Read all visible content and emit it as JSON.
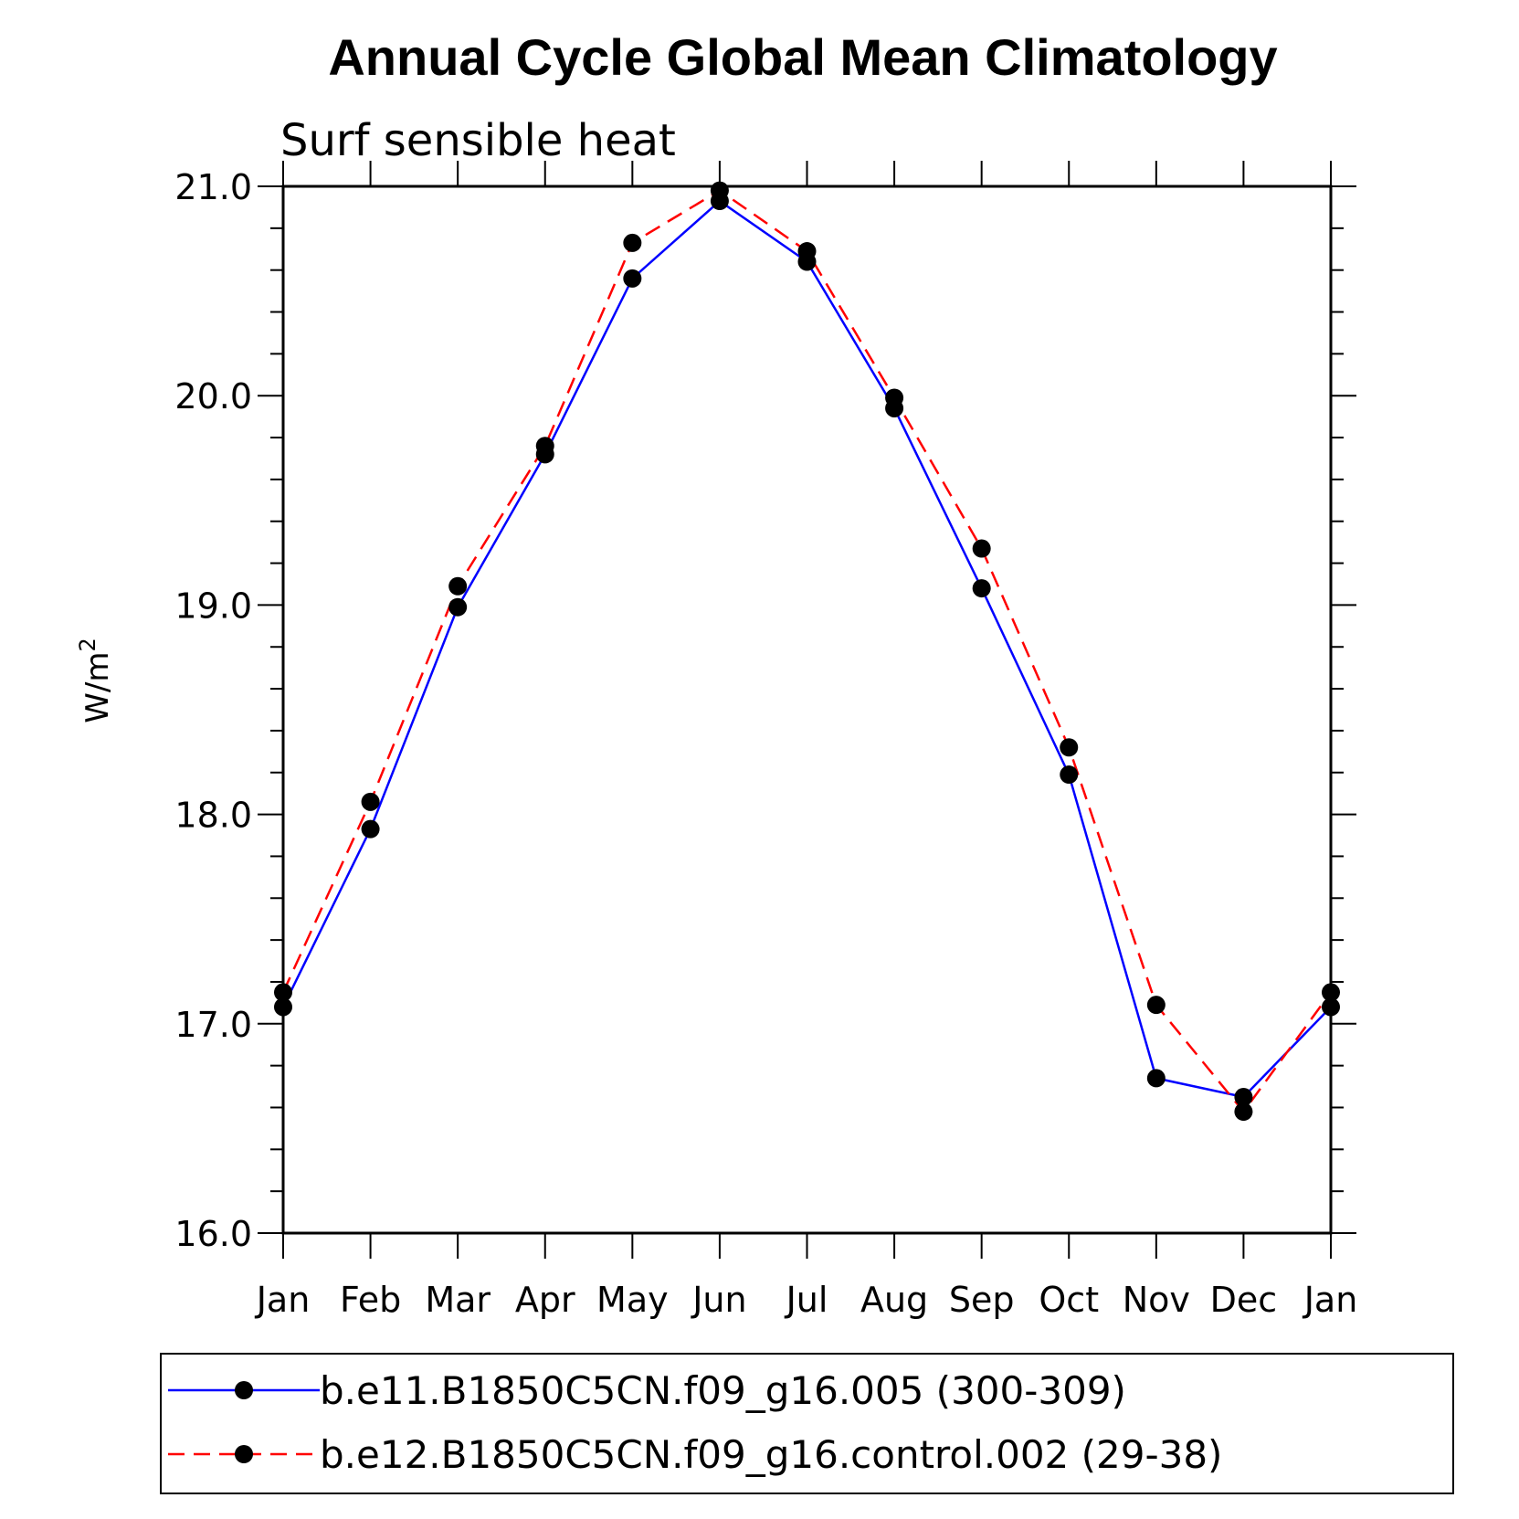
{
  "chart_data": {
    "type": "line",
    "title": "Annual Cycle Global Mean Climatology",
    "subtitle": "Surf sensible heat",
    "xlabel": "",
    "ylabel": "W/m",
    "ylabel_superscript": "2",
    "categories": [
      "Jan",
      "Feb",
      "Mar",
      "Apr",
      "May",
      "Jun",
      "Jul",
      "Aug",
      "Sep",
      "Oct",
      "Nov",
      "Dec",
      "Jan"
    ],
    "ylim": [
      16.0,
      21.0
    ],
    "yticks": [
      "16.0",
      "17.0",
      "18.0",
      "19.0",
      "20.0",
      "21.0"
    ],
    "grid": false,
    "legend_position": "bottom",
    "series": [
      {
        "name": "b.e11.B1850C5CN.f09_g16.005 (300-309)",
        "color": "#0000ff",
        "line_style": "solid",
        "marker": "filled-circle",
        "values": [
          17.08,
          17.93,
          18.99,
          19.72,
          20.56,
          20.93,
          20.64,
          19.94,
          19.08,
          18.19,
          16.74,
          16.65,
          17.08
        ]
      },
      {
        "name": "b.e12.B1850C5CN.f09_g16.control.002 (29-38)",
        "color": "#ff0000",
        "line_style": "dashed",
        "marker": "filled-circle",
        "values": [
          17.15,
          18.06,
          19.09,
          19.76,
          20.73,
          20.98,
          20.69,
          19.99,
          19.27,
          18.32,
          17.09,
          16.58,
          17.15
        ]
      }
    ]
  }
}
